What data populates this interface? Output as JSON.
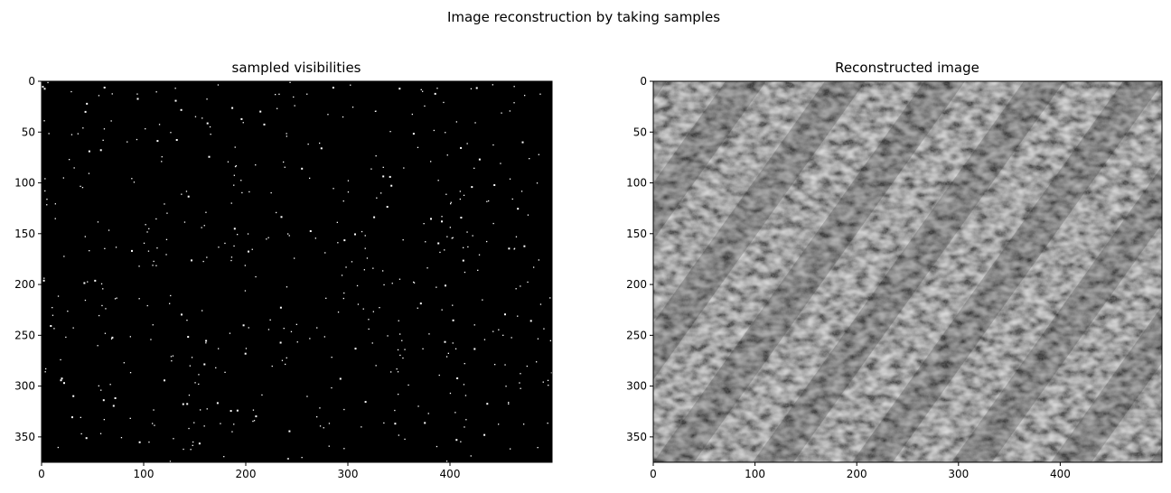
{
  "figure": {
    "suptitle": "Image reconstruction by taking samples"
  },
  "chart_data": [
    {
      "type": "heatmap",
      "title": "sampled visibilities",
      "colormap": "gray",
      "xlim": [
        0,
        500
      ],
      "ylim": [
        375,
        0
      ],
      "xticks": [
        0,
        100,
        200,
        300,
        400
      ],
      "yticks": [
        0,
        50,
        100,
        150,
        200,
        250,
        300,
        350
      ],
      "xlabel": "",
      "ylabel": "",
      "grid": false,
      "content": "sparse white sample points on black background",
      "background_color": "#000000",
      "sample_color": "#ffffff"
    },
    {
      "type": "heatmap",
      "title": "Reconstructed image",
      "colormap": "gray",
      "xlim": [
        0,
        500
      ],
      "ylim": [
        375,
        0
      ],
      "xticks": [
        0,
        100,
        200,
        300,
        400
      ],
      "yticks": [
        0,
        50,
        100,
        150,
        200,
        250,
        300,
        350
      ],
      "xlabel": "",
      "ylabel": "",
      "grid": false,
      "content": "noisy grayscale texture with diagonal banding"
    }
  ]
}
